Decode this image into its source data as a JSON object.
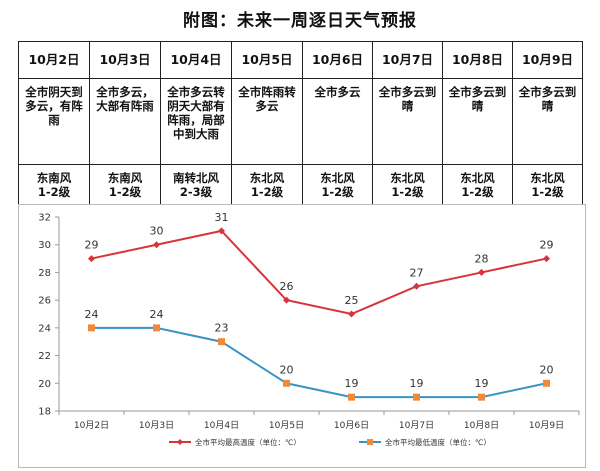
{
  "title": "附图：未来一周逐日天气预报",
  "forecast": {
    "dates": [
      "10月2日",
      "10月3日",
      "10月4日",
      "10月5日",
      "10月6日",
      "10月7日",
      "10月8日",
      "10月9日"
    ],
    "weather": [
      "全市阴天到多云，有阵雨",
      "全市多云，大部有阵雨",
      "全市多云转阴天大部有阵雨，局部中到大雨",
      "全市阵雨转多云",
      "全市多云",
      "全市多云到晴",
      "全市多云到晴",
      "全市多云到晴"
    ],
    "wind_dir": [
      "东南风",
      "东南风",
      "南转北风",
      "东北风",
      "东北风",
      "东北风",
      "东北风",
      "东北风"
    ],
    "wind_level": [
      "1-2级",
      "1-2级",
      "2-3级",
      "1-2级",
      "1-2级",
      "1-2级",
      "1-2级",
      "1-2级"
    ]
  },
  "chart_data": {
    "type": "line",
    "categories": [
      "10月2日",
      "10月3日",
      "10月4日",
      "10月5日",
      "10月6日",
      "10月7日",
      "10月8日",
      "10月9日"
    ],
    "ylim": [
      18,
      32
    ],
    "yticks": [
      18,
      20,
      22,
      24,
      26,
      28,
      30,
      32
    ],
    "grid": false,
    "legend_position": "bottom",
    "series": [
      {
        "name": "全市平均最高温度（单位：℃）",
        "color": "#d9333a",
        "marker": "diamond",
        "values": [
          29,
          30,
          31,
          26,
          25,
          27,
          28,
          29
        ]
      },
      {
        "name": "全市平均最低温度（单位：℃）",
        "color": "#3a93c3",
        "marker": "square",
        "marker_color": "#f08a3a",
        "values": [
          24,
          24,
          23,
          20,
          19,
          19,
          19,
          20
        ]
      }
    ]
  }
}
